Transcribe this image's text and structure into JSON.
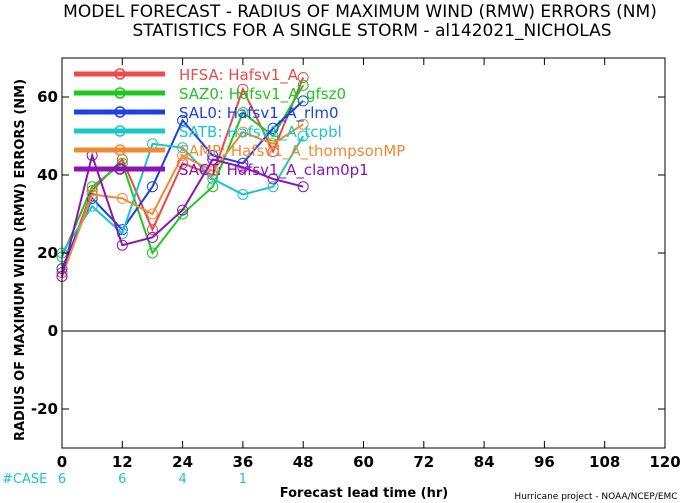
{
  "chart_data": {
    "type": "line",
    "title": "MODEL FORECAST - RADIUS OF MAXIMUM WIND (RMW) ERRORS (NM)",
    "subtitle": "STATISTICS FOR A SINGLE STORM - al142021_NICHOLAS",
    "ylabel": "RADIUS OF MAXIMUM WIND (RMW) ERRORS (NM)",
    "xlabel": "Forecast lead time (hr)",
    "credit": "Hurricane project - NOAA/NCEP/EMC",
    "xlim": [
      0,
      120
    ],
    "ylim": [
      -30,
      70
    ],
    "xticks": [
      0,
      12,
      24,
      36,
      48,
      60,
      72,
      84,
      96,
      108,
      120
    ],
    "yticks": [
      -20,
      0,
      20,
      40,
      60
    ],
    "zero_line": true,
    "legend_position": "top-left",
    "case_label": "#CASE",
    "cases": [
      {
        "x": 0,
        "label": "6"
      },
      {
        "x": 12,
        "label": "6"
      },
      {
        "x": 24,
        "label": "4"
      },
      {
        "x": 36,
        "label": "1"
      }
    ],
    "series": [
      {
        "id": "HFSA",
        "legend": "HFSA: Hafsv1_A",
        "color": "#f04848",
        "x": [
          0,
          6,
          12,
          18,
          24,
          30,
          36,
          42,
          48
        ],
        "y": [
          15,
          36,
          44,
          26,
          43,
          40,
          62,
          46,
          65
        ]
      },
      {
        "id": "SAZ0",
        "legend": "SAZ0: Hafsv1_A_gfsz0",
        "color": "#1ec81e",
        "x": [
          0,
          6,
          12,
          18,
          24,
          30,
          36,
          42,
          48
        ],
        "y": [
          19,
          37,
          43,
          20,
          30,
          37,
          56,
          50,
          63
        ]
      },
      {
        "id": "SAL0",
        "legend": "SAL0: Hafsv1_A_rlm0",
        "color": "#1e40e6",
        "x": [
          0,
          6,
          12,
          18,
          24,
          30,
          36,
          42,
          48
        ],
        "y": [
          16,
          34,
          26,
          37,
          54,
          45,
          43,
          52,
          59
        ]
      },
      {
        "id": "SATB",
        "legend": "SATB: Hafsv1_A_tcpbl",
        "color": "#1cc6c6",
        "x": [
          0,
          6,
          12,
          18,
          24,
          30,
          36,
          42,
          48
        ],
        "y": [
          20,
          32,
          25,
          48,
          47,
          39,
          35,
          37,
          50
        ]
      },
      {
        "id": "SAMP",
        "legend": "SAMP: Hafsv1_A_thompsonMP",
        "color": "#f08a32",
        "x": [
          0,
          6,
          12,
          18,
          24,
          30,
          36,
          42,
          48
        ],
        "y": [
          14,
          35,
          34,
          30,
          45,
          41,
          51,
          48,
          53
        ]
      },
      {
        "id": "SACT",
        "legend": "SACT: Hafsv1_A_clam0p1",
        "color": "#8c14b4",
        "x": [
          0,
          6,
          12,
          18,
          24,
          30,
          36,
          42,
          48
        ],
        "y": [
          14,
          45,
          22,
          24,
          31,
          44,
          42,
          39,
          37
        ]
      }
    ]
  }
}
